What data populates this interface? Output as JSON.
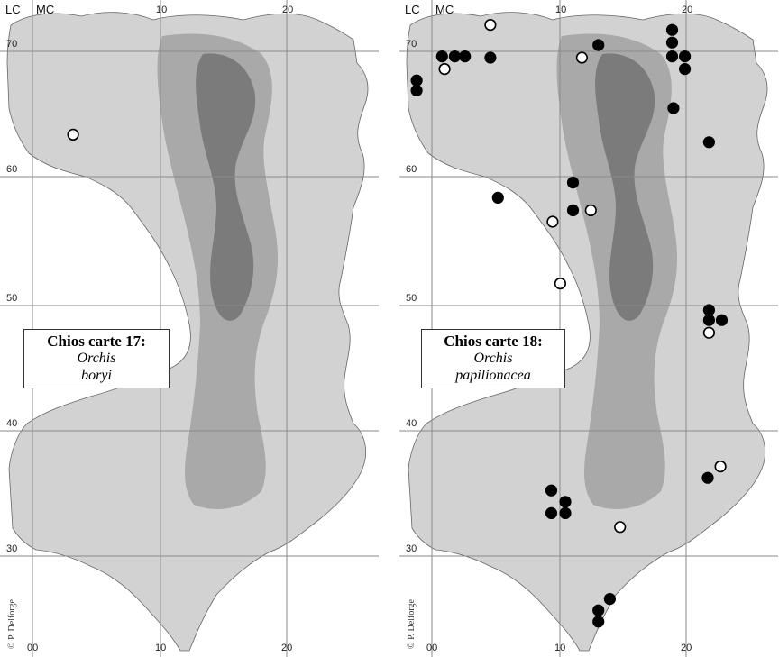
{
  "maps": [
    {
      "id": "left",
      "header_left": "LC",
      "header_right": "MC",
      "legend_title": "Chios carte 17:",
      "legend_taxon_line1": "Orchis",
      "legend_taxon_line2": "boryi",
      "copyright": "© P. Delforge",
      "x_labels": [
        "00",
        "10",
        "20"
      ],
      "y_labels": [
        "70",
        "60",
        "50",
        "40",
        "30"
      ],
      "records": [
        {
          "easting": 3.2,
          "northing": 63.4,
          "type": "open"
        }
      ]
    },
    {
      "id": "right",
      "header_left": "LC",
      "header_right": "MC",
      "legend_title": "Chios carte 18:",
      "legend_taxon_line1": "Orchis",
      "legend_taxon_line2": "papilionacea",
      "copyright": "© P. Delforge",
      "x_labels": [
        "00",
        "10",
        "20"
      ],
      "y_labels": [
        "70",
        "60",
        "50",
        "40",
        "30"
      ],
      "records": [
        {
          "easting": 4.6,
          "northing": 72.1,
          "type": "open"
        },
        {
          "easting": 0.8,
          "northing": 69.6,
          "type": "filled"
        },
        {
          "easting": 1.8,
          "northing": 69.6,
          "type": "filled"
        },
        {
          "easting": 2.6,
          "northing": 69.6,
          "type": "filled"
        },
        {
          "easting": 1.0,
          "northing": 68.6,
          "type": "open"
        },
        {
          "easting": 4.6,
          "northing": 69.5,
          "type": "filled"
        },
        {
          "easting": -1.2,
          "northing": 67.7,
          "type": "filled"
        },
        {
          "easting": -1.2,
          "northing": 66.9,
          "type": "filled"
        },
        {
          "easting": 13.1,
          "northing": 70.5,
          "type": "filled"
        },
        {
          "easting": 11.8,
          "northing": 69.5,
          "type": "open"
        },
        {
          "easting": 18.9,
          "northing": 71.7,
          "type": "filled"
        },
        {
          "easting": 18.9,
          "northing": 70.7,
          "type": "filled"
        },
        {
          "easting": 18.9,
          "northing": 69.6,
          "type": "filled"
        },
        {
          "easting": 19.9,
          "northing": 69.6,
          "type": "filled"
        },
        {
          "easting": 19.9,
          "northing": 68.6,
          "type": "filled"
        },
        {
          "easting": 19.0,
          "northing": 65.5,
          "type": "filled"
        },
        {
          "easting": 21.8,
          "northing": 62.8,
          "type": "filled"
        },
        {
          "easting": 11.1,
          "northing": 59.6,
          "type": "filled"
        },
        {
          "easting": 5.2,
          "northing": 58.4,
          "type": "filled"
        },
        {
          "easting": 11.1,
          "northing": 57.4,
          "type": "filled"
        },
        {
          "easting": 12.5,
          "northing": 57.4,
          "type": "open"
        },
        {
          "easting": 9.5,
          "northing": 56.5,
          "type": "open"
        },
        {
          "easting": 10.1,
          "northing": 51.6,
          "type": "open"
        },
        {
          "easting": 21.8,
          "northing": 49.5,
          "type": "filled"
        },
        {
          "easting": 21.8,
          "northing": 48.7,
          "type": "filled"
        },
        {
          "easting": 22.8,
          "northing": 48.7,
          "type": "filled"
        },
        {
          "easting": 21.8,
          "northing": 47.7,
          "type": "open"
        },
        {
          "easting": 22.7,
          "northing": 37.1,
          "type": "open"
        },
        {
          "easting": 21.7,
          "northing": 36.2,
          "type": "filled"
        },
        {
          "easting": 9.4,
          "northing": 35.2,
          "type": "filled"
        },
        {
          "easting": 10.5,
          "northing": 34.3,
          "type": "filled"
        },
        {
          "easting": 9.4,
          "northing": 33.4,
          "type": "filled"
        },
        {
          "easting": 10.5,
          "northing": 33.4,
          "type": "filled"
        },
        {
          "easting": 14.8,
          "northing": 32.3,
          "type": "open"
        },
        {
          "easting": 14.0,
          "northing": 26.6,
          "type": "filled"
        },
        {
          "easting": 13.1,
          "northing": 25.7,
          "type": "filled"
        },
        {
          "easting": 13.1,
          "northing": 24.8,
          "type": "filled"
        }
      ]
    }
  ],
  "colors": {
    "land_light": "#d2d2d2",
    "land_mid": "#a9a9a9",
    "land_dark": "#7b7b7b",
    "grid": "#8a8a8a",
    "marker_fill_open": "#ffffff",
    "marker_fill_filled": "#000000"
  }
}
